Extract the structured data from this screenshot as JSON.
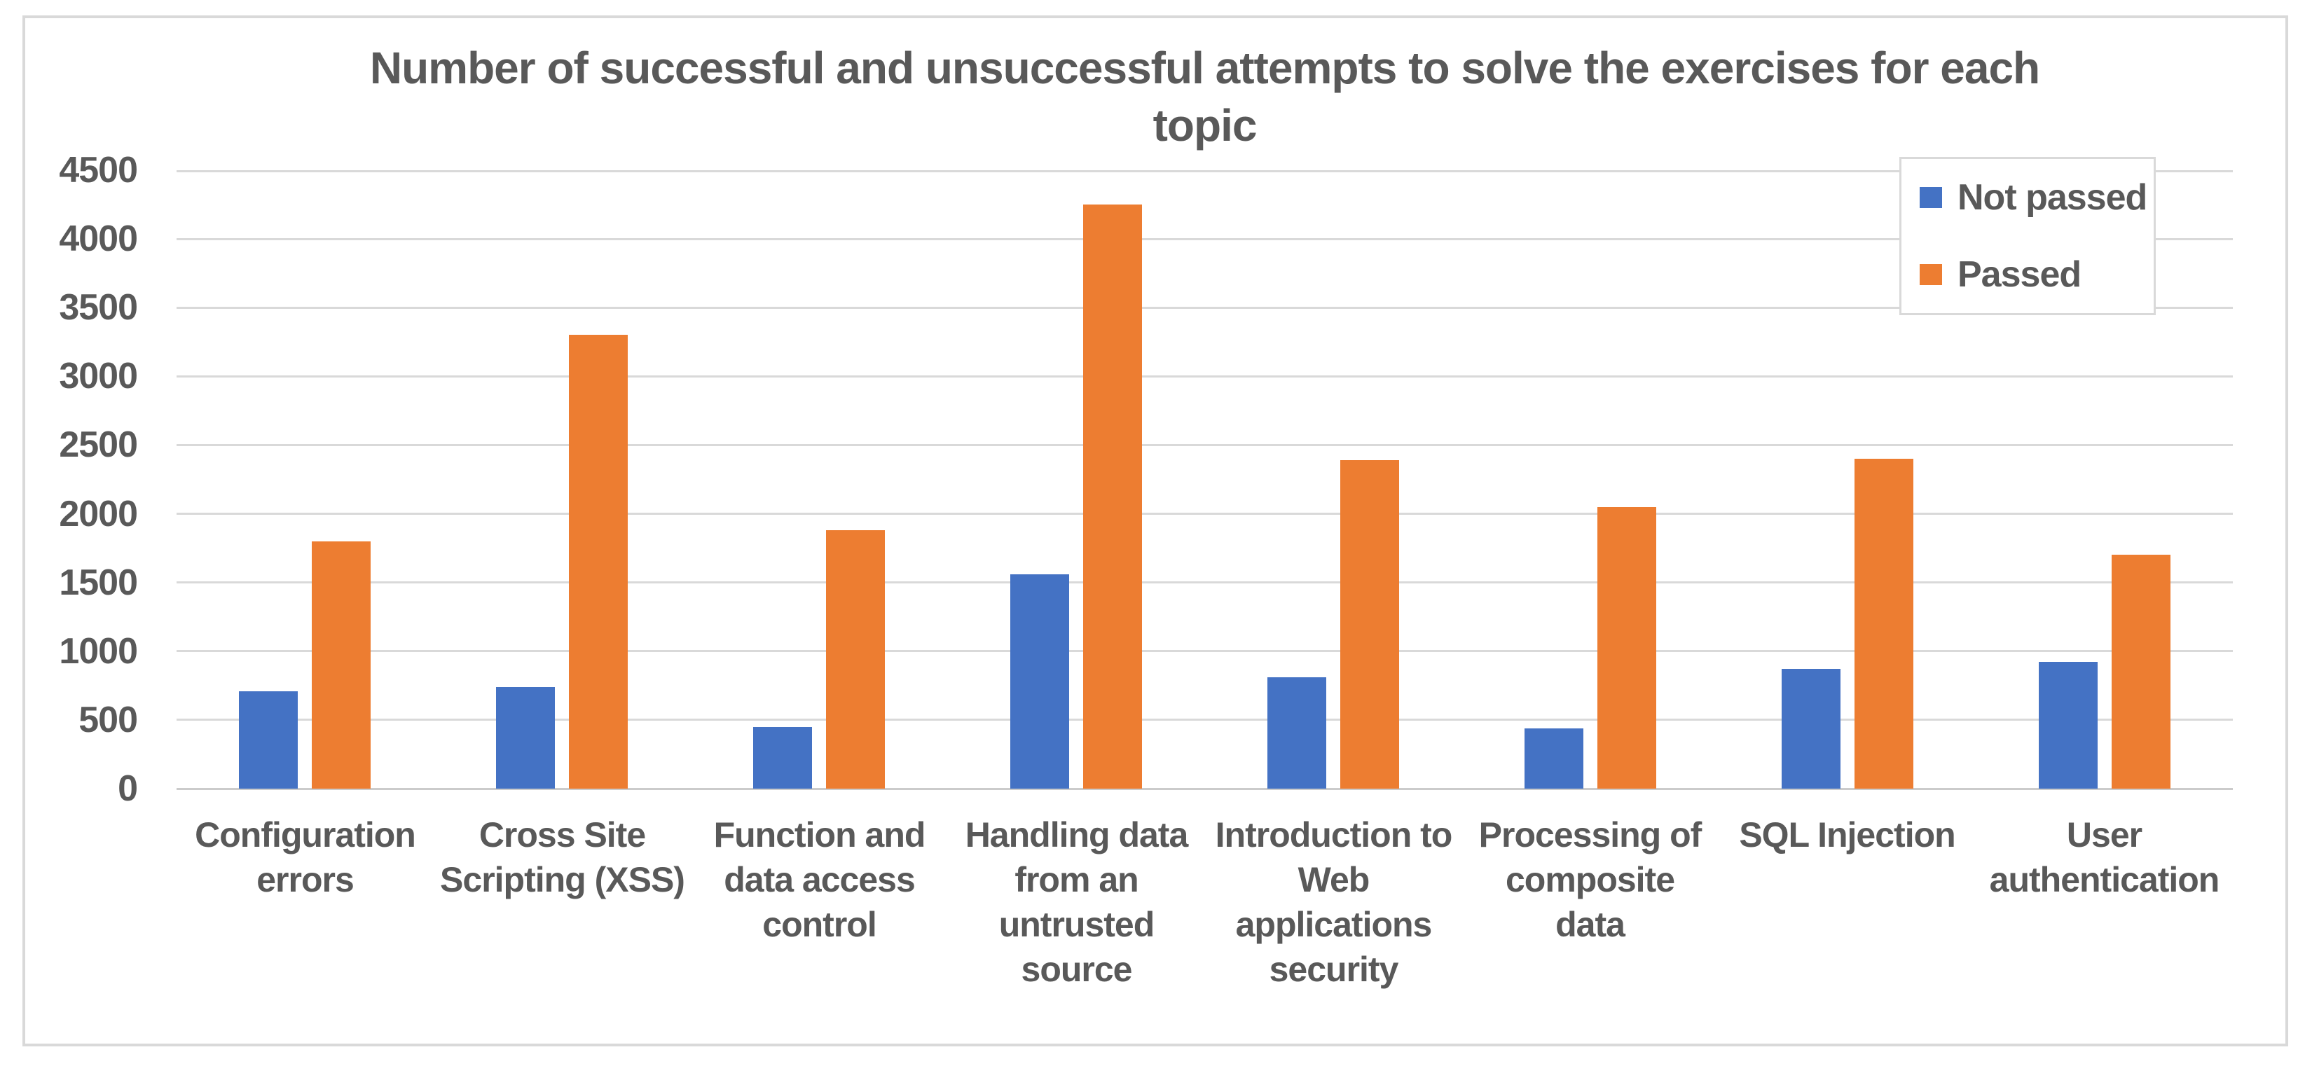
{
  "page": {
    "title_lines": [
      "Number of successful and unsuccessful attempts to solve the exercises for each",
      "topic"
    ]
  },
  "chart_data": {
    "type": "bar",
    "title": "Number of successful and unsuccessful attempts to solve the exercises for each topic",
    "categories": [
      "Configuration errors",
      "Cross Site Scripting (XSS)",
      "Function and data access control",
      "Handling data from an untrusted source",
      "Introduction to Web applications security",
      "Processing of composite data",
      "SQL Injection",
      "User authentication"
    ],
    "category_label_lines": [
      [
        "Configuration",
        "errors"
      ],
      [
        "Cross Site",
        "Scripting (XSS)"
      ],
      [
        "Function and",
        "data access",
        "control"
      ],
      [
        "Handling data",
        "from an",
        "untrusted",
        "source"
      ],
      [
        "Introduction to",
        "Web",
        "applications",
        "security"
      ],
      [
        "Processing of",
        "composite",
        "data"
      ],
      [
        "SQL Injection"
      ],
      [
        "User",
        "authentication"
      ]
    ],
    "series": [
      {
        "name": "Not passed",
        "color": "#4472C4",
        "values": [
          710,
          740,
          450,
          1560,
          810,
          440,
          870,
          920
        ]
      },
      {
        "name": "Passed",
        "color": "#ED7D31",
        "values": [
          1800,
          3300,
          1880,
          4250,
          2390,
          2050,
          2400,
          1700
        ]
      }
    ],
    "y_axis": {
      "min": 0,
      "max": 4500,
      "step": 500,
      "tick_labels": [
        "0",
        "500",
        "1000",
        "1500",
        "2000",
        "2500",
        "3000",
        "3500",
        "4000",
        "4500"
      ]
    },
    "grid": true,
    "legend": {
      "position": "top-right",
      "entries": [
        "Not passed",
        "Passed"
      ]
    },
    "styles": {
      "text_color": "#595959",
      "gridline_color": "#D9D9D9",
      "axis_line_color": "#CBCBCB",
      "chart_border_color": "#D9D9D9",
      "background": "#FFFFFF",
      "not_passed_color": "#4472C4",
      "passed_color": "#ED7D31"
    }
  }
}
